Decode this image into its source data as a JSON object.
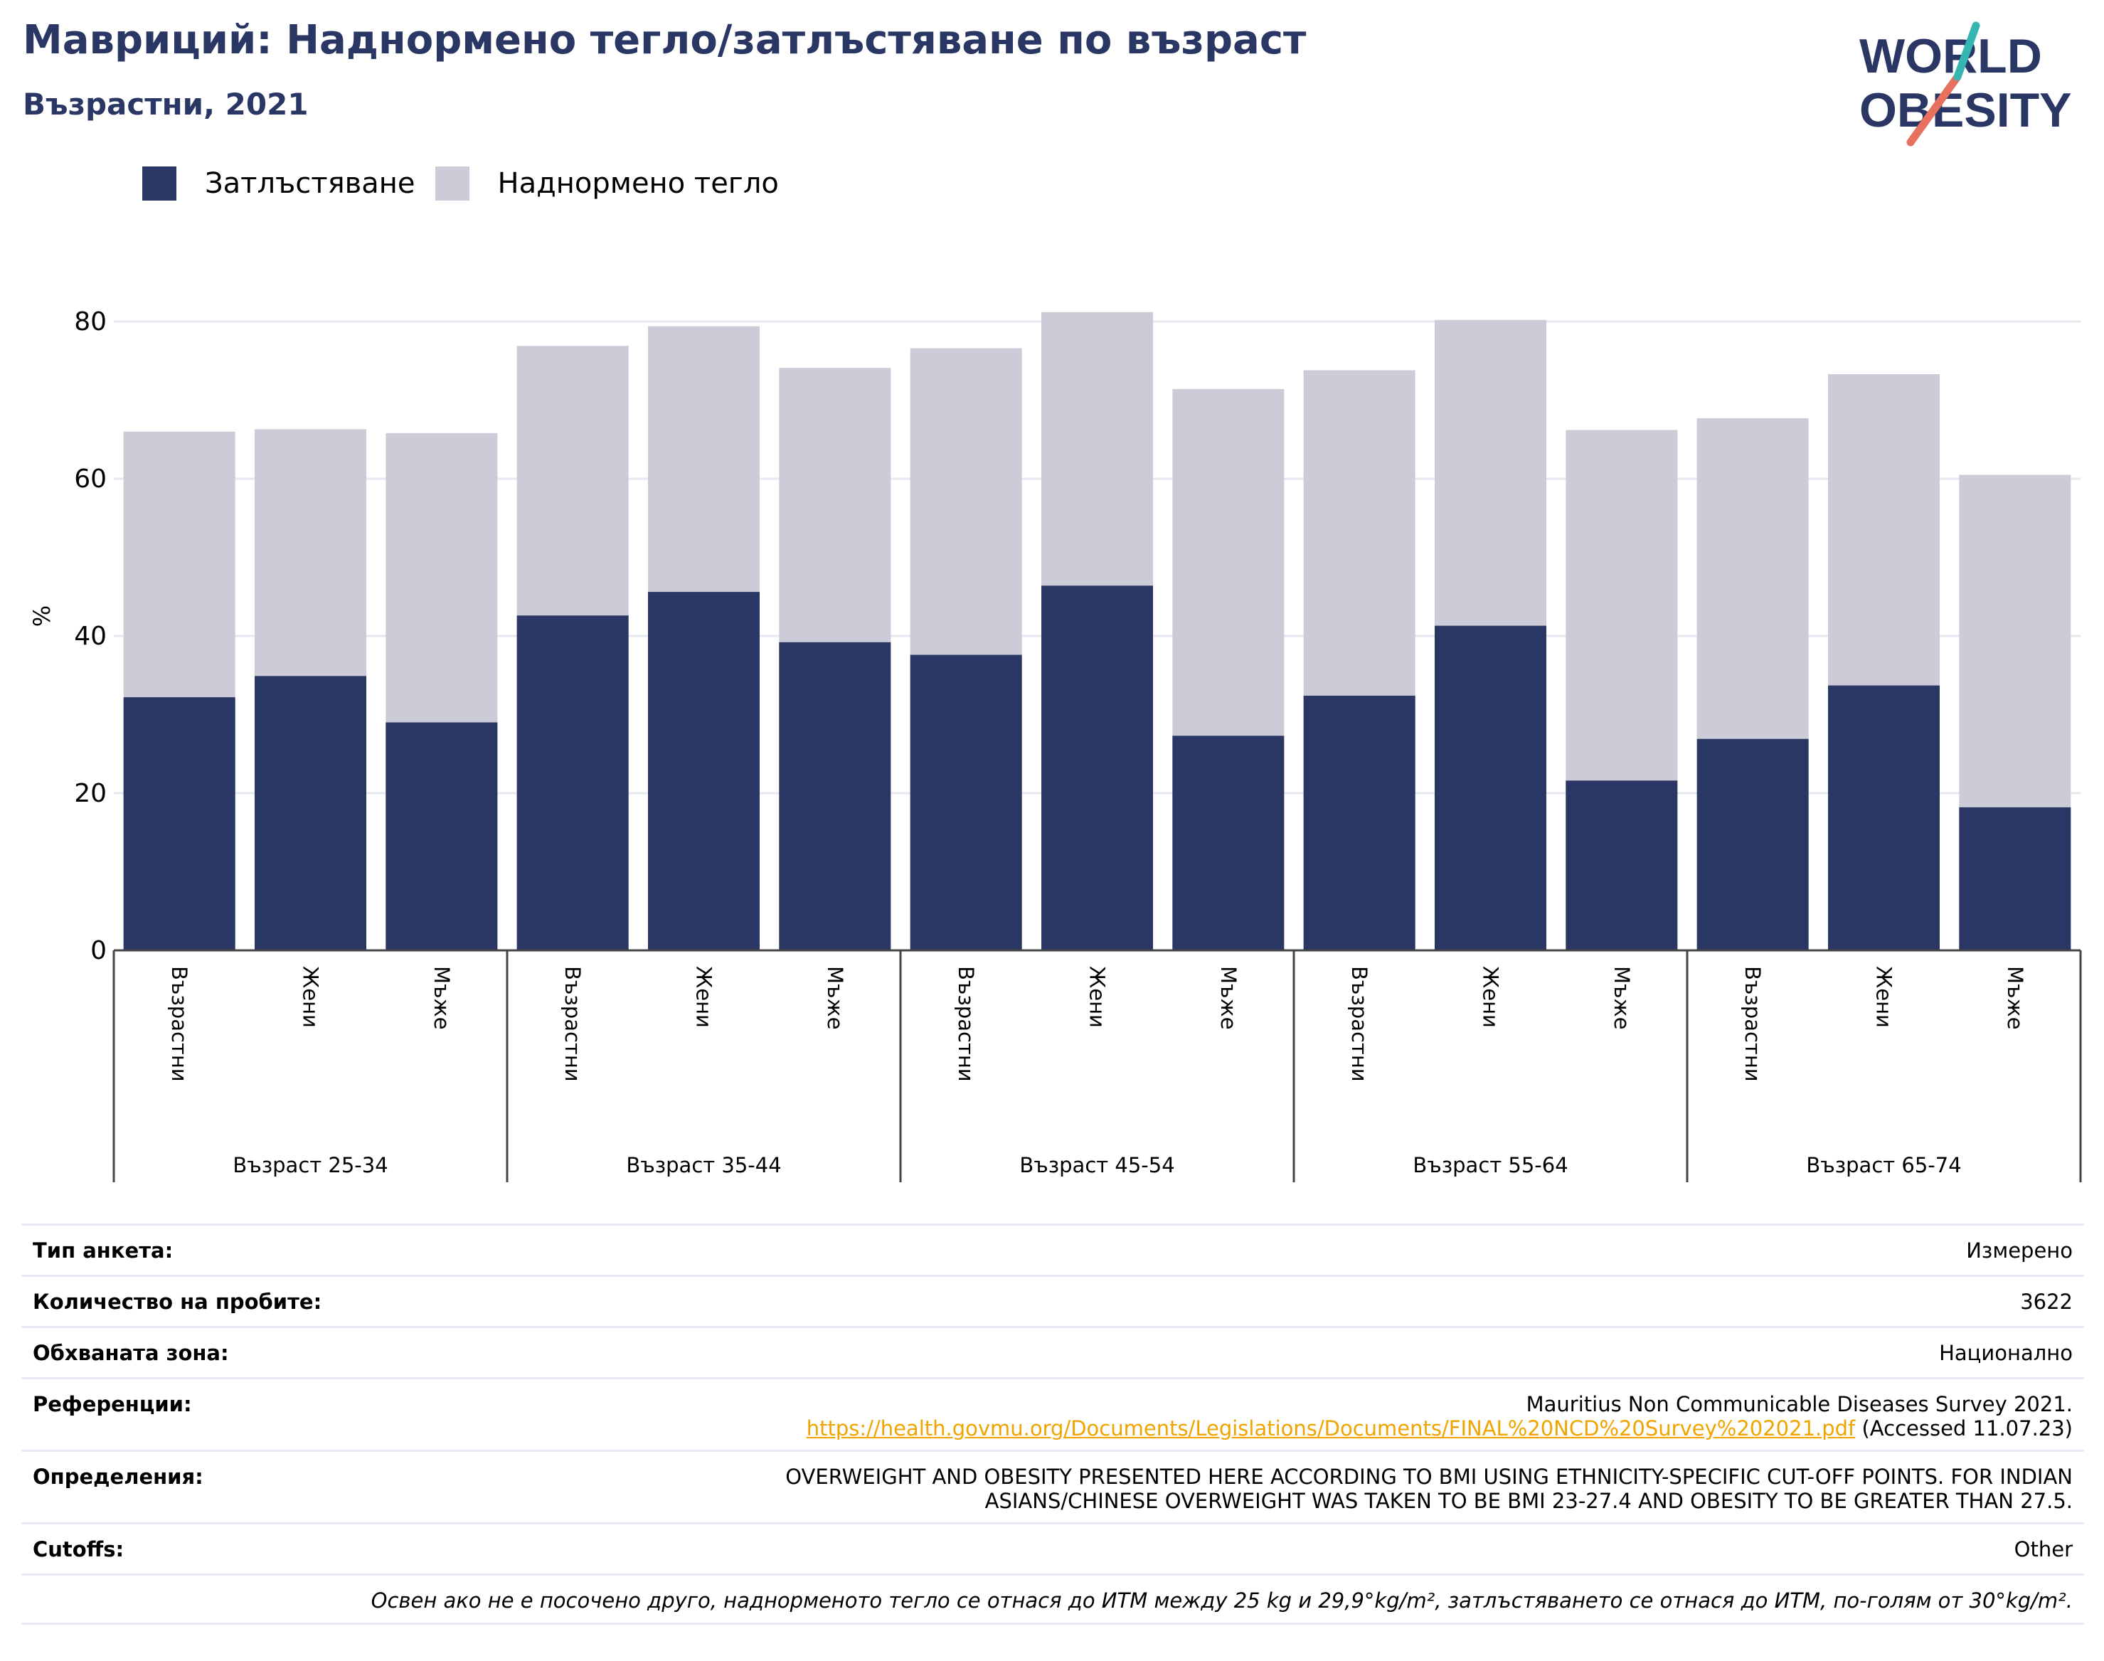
{
  "title": "Мавриций: Наднормено тегло/затлъстяване по възраст",
  "subtitle": "Възрастни, 2021",
  "logo": {
    "line1": "WORLD",
    "line2": "OBESITY"
  },
  "colors": {
    "obesity": "#2a3663",
    "overweight": "#cbccd8",
    "title": "#2a3663",
    "link": "#f0a400"
  },
  "legend": {
    "obesity": "Затлъстяване",
    "overweight": "Наднормено тегло"
  },
  "chart_data": {
    "type": "bar",
    "stacked": false,
    "ylabel": "%",
    "ylim": [
      0,
      85
    ],
    "yticks": [
      0,
      20,
      40,
      60,
      80
    ],
    "grid": true,
    "legend_position": "top-left",
    "groups": [
      "Възраст 25-34",
      "Възраст 35-44",
      "Възраст 45-54",
      "Възраст 55-64",
      "Възраст 65-74"
    ],
    "subcategories": [
      "Възрастни",
      "Жени",
      "Мъже"
    ],
    "series": [
      {
        "name": "Затлъстяване",
        "values": [
          32.2,
          34.9,
          29.0,
          42.6,
          45.6,
          39.2,
          37.6,
          46.4,
          27.3,
          32.4,
          41.3,
          21.6,
          26.9,
          33.7,
          18.2
        ]
      },
      {
        "name": "Наднормено тегло",
        "values": [
          66.0,
          66.3,
          65.8,
          76.9,
          79.4,
          74.1,
          76.6,
          81.2,
          71.4,
          73.8,
          80.2,
          66.2,
          67.7,
          73.3,
          60.5
        ]
      }
    ]
  },
  "info": {
    "survey_type": {
      "label": "Тип анкета:",
      "value": "Измерено"
    },
    "sample_size": {
      "label": "Количество на пробите:",
      "value": "3622"
    },
    "area": {
      "label": "Обхваната зона:",
      "value": "Национално"
    },
    "references": {
      "label": "Референции:",
      "line1": "Mauritius Non Communicable Diseases Survey 2021.",
      "link": "https://health.govmu.org/Documents/Legislations/Documents/FINAL%20NCD%20Survey%202021.pdf",
      "accessed": " (Accessed 11.07.23)"
    },
    "definitions": {
      "label": "Определения:",
      "line1": "OVERWEIGHT AND OBESITY PRESENTED HERE ACCORDING TO BMI USING ETHNICITY-SPECIFIC CUT-OFF POINTS. FOR INDIAN",
      "line2": "ASIANS/CHINESE OVERWEIGHT WAS TAKEN TO BE BMI 23-27.4 AND OBESITY TO BE GREATER THAN 27.5."
    },
    "cutoffs": {
      "label": "Cutoffs:",
      "value": "Other"
    },
    "note": "Освен ако не е посочено друго, наднорменото тегло се отнася до ИТМ между 25 kg и 29,9°kg/m², затлъстяването се отнася до ИТМ, по-голям от 30°kg/m²."
  }
}
